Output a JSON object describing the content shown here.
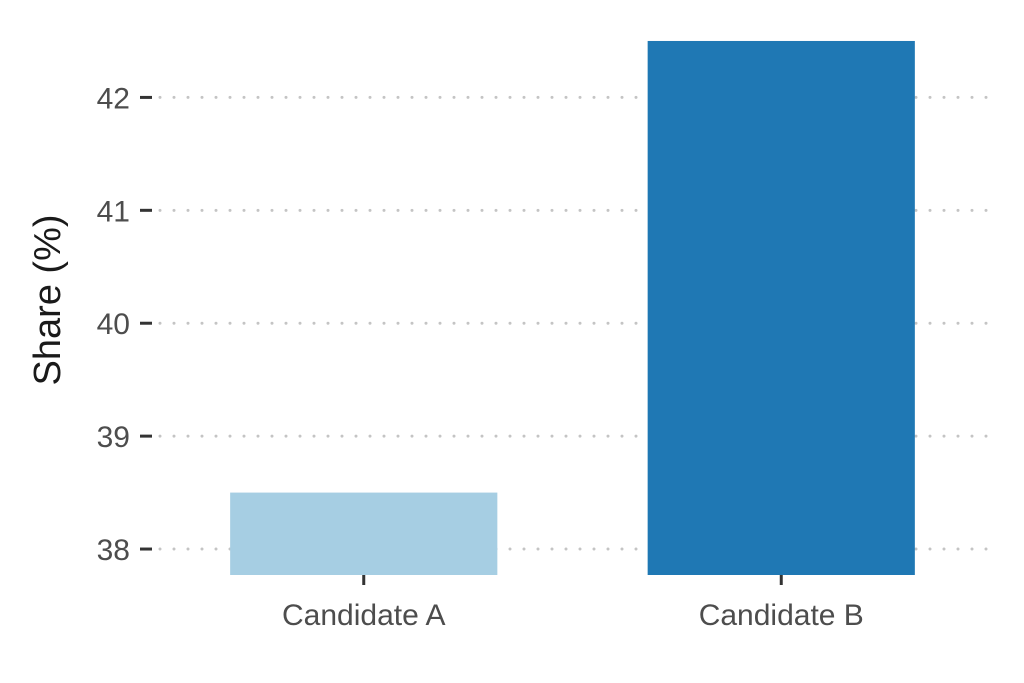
{
  "chart_data": {
    "type": "bar",
    "categories": [
      "Candidate A",
      "Candidate B"
    ],
    "values": [
      38.5,
      42.5
    ],
    "colors": [
      "#a6cee3",
      "#1f78b4"
    ],
    "ylabel": "Share (%)",
    "xlabel": "",
    "yticks": [
      38,
      39,
      40,
      41,
      42
    ],
    "ylim": [
      37.77,
      42.73
    ],
    "grid": "horizontal-dotted",
    "legend": "none"
  }
}
